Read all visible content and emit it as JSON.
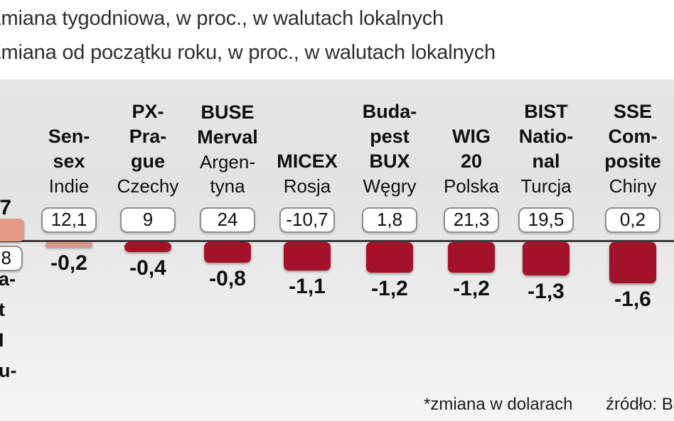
{
  "page": {
    "legend_line1": "Zmiana tygodniowa, w proc., w walutach lokalnych",
    "legend_line2": "Zmiana od początku roku, w proc., w walutach lokalnych",
    "footnote": "*zmiana w dolarach",
    "source": "źródło: B"
  },
  "cut_column": {
    "weekly_fragment": "7",
    "ytd_fragment": "8",
    "label_fragment": "a-\nt\nI\nu-",
    "bar_color": "#e49a86"
  },
  "chart_data": {
    "type": "bar",
    "title": "",
    "categories": [
      "Sensex (Indie)",
      "PX-Prague (Czechy)",
      "BUSE Merval (Argentyna)",
      "MICEX (Rosja)",
      "Budapest BUX (Węgry)",
      "WIG 20 (Polska)",
      "BIST National (Turcja)",
      "SSE Composite (Chiny)"
    ],
    "series": [
      {
        "name": "Zmiana tygodniowa, w proc., w walutach lokalnych",
        "values": [
          -0.2,
          -0.4,
          -0.8,
          -1.1,
          -1.2,
          -1.2,
          -1.3,
          -1.6
        ]
      },
      {
        "name": "Zmiana od początku roku, w proc., w walutach lokalnych",
        "values": [
          12.1,
          9,
          24,
          -10.7,
          1.8,
          21.3,
          19.5,
          0.2
        ]
      }
    ],
    "colors": {
      "bar_negative_weekly": "#a31229",
      "bar_positive_weekly": "#e49a86"
    },
    "columns": [
      {
        "bold": "Sen-\nsex",
        "plain": "Indie",
        "ytd": "12,1",
        "ytd_value": 12.1,
        "weekly": "-0,2",
        "weekly_value": -0.2,
        "bar_color": "#dd9a87"
      },
      {
        "bold": "PX-\nPra-\ngue",
        "plain": "Czechy",
        "ytd": "9",
        "ytd_value": 9,
        "weekly": "-0,4",
        "weekly_value": -0.4
      },
      {
        "bold": "BUSE\nMerval",
        "plain": "Argen-\ntyna",
        "ytd": "24",
        "ytd_value": 24,
        "weekly": "-0,8",
        "weekly_value": -0.8
      },
      {
        "bold": "MICEX",
        "plain": "Rosja",
        "ytd": "-10,7",
        "ytd_value": -10.7,
        "weekly": "-1,1",
        "weekly_value": -1.1
      },
      {
        "bold": "Buda-\npest\nBUX",
        "plain": "Węgry",
        "ytd": "1,8",
        "ytd_value": 1.8,
        "weekly": "-1,2",
        "weekly_value": -1.2
      },
      {
        "bold": "WIG\n20",
        "plain": "Polska",
        "ytd": "21,3",
        "ytd_value": 21.3,
        "weekly": "-1,2",
        "weekly_value": -1.2
      },
      {
        "bold": "BIST\nNatio-\nnal",
        "plain": "Turcja",
        "ytd": "19,5",
        "ytd_value": 19.5,
        "weekly": "-1,3",
        "weekly_value": -1.3
      },
      {
        "bold": "SSE\nCom-\nposite",
        "plain": "Chiny",
        "ytd": "0,2",
        "ytd_value": 0.2,
        "weekly": "-1,6",
        "weekly_value": -1.6
      }
    ]
  }
}
